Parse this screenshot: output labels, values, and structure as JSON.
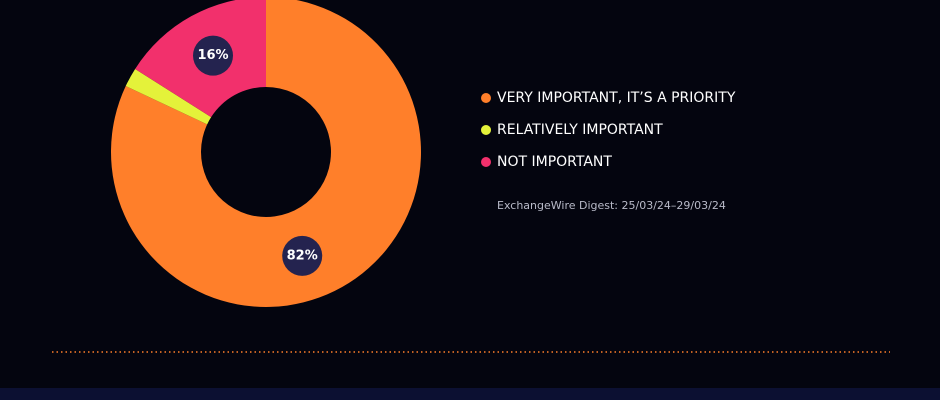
{
  "chart_data": {
    "type": "pie",
    "categories": [
      "VERY IMPORTANT, IT’S A PRIORITY",
      "RELATIVELY IMPORTANT",
      "NOT IMPORTANT"
    ],
    "values": [
      82,
      2,
      16
    ],
    "value_labels": [
      "82%",
      null,
      "16%"
    ],
    "colors": [
      "#ff7f2a",
      "#e4f23a",
      "#f2306c"
    ],
    "source": "ExchangeWire Digest: 25/03/24–29/03/24"
  }
}
